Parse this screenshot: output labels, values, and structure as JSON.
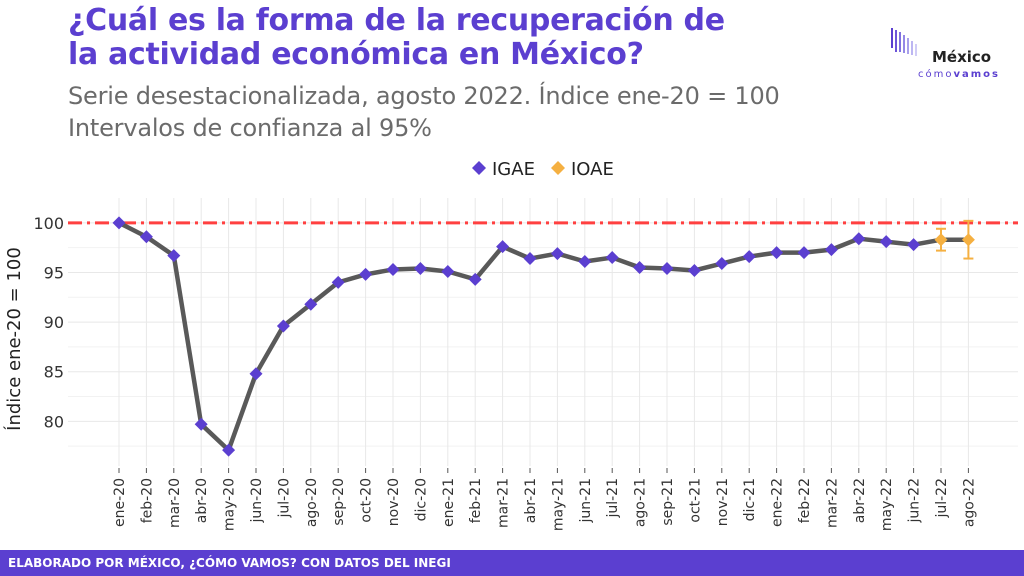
{
  "header": {
    "title_line1": "¿Cuál es la forma de la recuperación de",
    "title_line2": "la actividad económica en México?",
    "subtitle_line1": "Serie desestacionalizada, agosto 2022. Índice ene-20 = 100",
    "subtitle_line2": "Intervalos de confianza al 95%"
  },
  "logo": {
    "name": "México",
    "tag_light": "cómo",
    "tag_bold": "vamos"
  },
  "footer": {
    "text": "ELABORADO POR MÉXICO, ¿CÓMO VAMOS? CON DATOS DEL INEGI"
  },
  "colors": {
    "igae": "#5b3fd0",
    "ioae": "#f5b041",
    "line": "#595959",
    "reference": "#ff4040",
    "grid": "#e8e8e8",
    "brand": "#5b3fd0"
  },
  "chart_data": {
    "type": "line",
    "categories": [
      "ene-20",
      "feb-20",
      "mar-20",
      "abr-20",
      "may-20",
      "jun-20",
      "jul-20",
      "ago-20",
      "sep-20",
      "oct-20",
      "nov-20",
      "dic-20",
      "ene-21",
      "feb-21",
      "mar-21",
      "abr-21",
      "may-21",
      "jun-21",
      "jul-21",
      "ago-21",
      "sep-21",
      "oct-21",
      "nov-21",
      "dic-21",
      "ene-22",
      "feb-22",
      "mar-22",
      "abr-22",
      "may-22",
      "jun-22",
      "jul-22",
      "ago-22"
    ],
    "series": [
      {
        "name": "IGAE",
        "marker": "diamond",
        "values": [
          100.0,
          98.6,
          96.7,
          79.7,
          77.1,
          84.8,
          89.6,
          91.8,
          94.0,
          94.8,
          95.3,
          95.4,
          95.1,
          94.3,
          97.6,
          96.4,
          96.9,
          96.1,
          96.5,
          95.5,
          95.4,
          95.2,
          95.9,
          96.6,
          97.0,
          97.0,
          97.3,
          98.4,
          98.1,
          97.8,
          null,
          null
        ]
      },
      {
        "name": "IOAE",
        "marker": "diamond",
        "values": [
          null,
          null,
          null,
          null,
          null,
          null,
          null,
          null,
          null,
          null,
          null,
          null,
          null,
          null,
          null,
          null,
          null,
          null,
          null,
          null,
          null,
          null,
          null,
          null,
          null,
          null,
          null,
          null,
          null,
          null,
          98.3,
          98.3
        ],
        "ci_low": [
          null,
          null,
          null,
          null,
          null,
          null,
          null,
          null,
          null,
          null,
          null,
          null,
          null,
          null,
          null,
          null,
          null,
          null,
          null,
          null,
          null,
          null,
          null,
          null,
          null,
          null,
          null,
          null,
          null,
          null,
          97.2,
          96.4
        ],
        "ci_high": [
          null,
          null,
          null,
          null,
          null,
          null,
          null,
          null,
          null,
          null,
          null,
          null,
          null,
          null,
          null,
          null,
          null,
          null,
          null,
          null,
          null,
          null,
          null,
          null,
          null,
          null,
          null,
          null,
          null,
          null,
          99.4,
          100.2
        ]
      }
    ],
    "reference_line": 100,
    "yticks": [
      80,
      85,
      90,
      95,
      100
    ],
    "ylim": [
      75.5,
      102.5
    ],
    "ylabel": "Índice ene-20 = 100",
    "xlabel": "",
    "legend_position": "top-center",
    "grid": true
  }
}
